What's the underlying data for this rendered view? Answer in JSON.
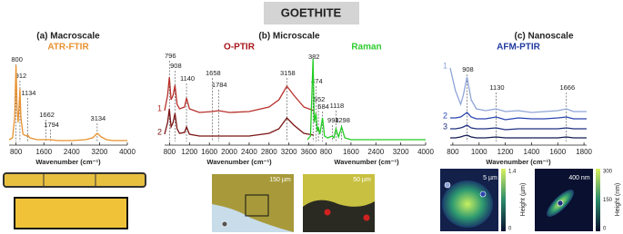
{
  "title": "GOETHITE",
  "sections": [
    "(a) Macroscale",
    "(b) Microscale",
    "(c) Nanoscale"
  ],
  "chart_data": [
    {
      "type": "line",
      "title": "ATR-FTIR",
      "title_color": "#e8912e",
      "xlabel": "Wavenumber (cm⁻¹)",
      "xlim": [
        600,
        4000
      ],
      "xticks": [
        800,
        1600,
        2400,
        3200,
        4000
      ],
      "ylim": [
        0,
        1
      ],
      "peaks": [
        800,
        912,
        1134,
        1662,
        1794,
        3134
      ],
      "x": [
        600,
        700,
        760,
        800,
        830,
        860,
        890,
        912,
        940,
        1000,
        1100,
        1134,
        1200,
        1400,
        1662,
        1794,
        2000,
        2400,
        2800,
        3000,
        3134,
        3250,
        3400,
        3600,
        4000
      ],
      "series": [
        {
          "color": "#e8912e",
          "values": [
            0.06,
            0.08,
            0.3,
            0.88,
            0.4,
            0.25,
            0.45,
            0.62,
            0.3,
            0.12,
            0.1,
            0.11,
            0.08,
            0.06,
            0.06,
            0.06,
            0.05,
            0.05,
            0.06,
            0.08,
            0.13,
            0.09,
            0.06,
            0.05,
            0.05
          ]
        }
      ]
    },
    {
      "type": "line",
      "title": "O-PTIR",
      "title_color": "#a8161a",
      "xlabel": "Wavenumber (cm⁻¹)",
      "xlim": [
        700,
        3700
      ],
      "xticks": [
        800,
        1200,
        1600,
        2000,
        2400,
        2800,
        3200,
        3600
      ],
      "ylim": [
        0,
        1
      ],
      "peaks": [
        796,
        908,
        1140,
        1658,
        1784,
        3158
      ],
      "x": [
        700,
        760,
        796,
        830,
        870,
        908,
        950,
        1000,
        1100,
        1140,
        1200,
        1400,
        1658,
        1784,
        2000,
        2400,
        2800,
        3000,
        3158,
        3300,
        3500,
        3700
      ],
      "series": [
        {
          "name": "1",
          "color": "#b8302a",
          "values": [
            0.38,
            0.55,
            0.75,
            0.5,
            0.55,
            0.66,
            0.45,
            0.4,
            0.42,
            0.52,
            0.4,
            0.36,
            0.37,
            0.38,
            0.36,
            0.37,
            0.42,
            0.5,
            0.65,
            0.55,
            0.42,
            0.38
          ]
        },
        {
          "name": "2",
          "color": "#7a1414",
          "values": [
            0.12,
            0.25,
            0.4,
            0.2,
            0.25,
            0.35,
            0.18,
            0.13,
            0.14,
            0.2,
            0.12,
            0.1,
            0.1,
            0.1,
            0.1,
            0.1,
            0.13,
            0.18,
            0.3,
            0.22,
            0.13,
            0.11
          ]
        }
      ]
    },
    {
      "type": "line",
      "title": "Raman",
      "title_color": "#2ecc2e",
      "xlabel": "Wavenumber (cm⁻¹)",
      "xlim": [
        200,
        4000
      ],
      "xticks": [
        800,
        1600,
        2400,
        3200,
        4000
      ],
      "ylim": [
        0,
        1
      ],
      "peaks": [
        382,
        474,
        552,
        684,
        998,
        1118,
        1298
      ],
      "x": [
        200,
        300,
        382,
        420,
        474,
        520,
        552,
        600,
        684,
        750,
        850,
        998,
        1050,
        1118,
        1200,
        1298,
        1400,
        1600,
        2000,
        2400,
        3000,
        3500,
        4000
      ],
      "series": [
        {
          "color": "#22cc22",
          "values": [
            0.06,
            0.1,
            0.95,
            0.25,
            0.35,
            0.15,
            0.2,
            0.12,
            0.3,
            0.1,
            0.08,
            0.1,
            0.08,
            0.18,
            0.09,
            0.2,
            0.08,
            0.06,
            0.06,
            0.06,
            0.06,
            0.06,
            0.06
          ]
        }
      ]
    },
    {
      "type": "line",
      "title": "AFM-PTIR",
      "title_color": "#1f3a9e",
      "xlabel": "Wavenumber (cm⁻¹)",
      "xlim": [
        780,
        1820
      ],
      "xticks": [
        800,
        1000,
        1200,
        1400,
        1600,
        1800
      ],
      "ylim": [
        0,
        1
      ],
      "peaks": [
        908,
        1130,
        1666
      ],
      "x": [
        780,
        820,
        860,
        880,
        908,
        940,
        980,
        1050,
        1130,
        1200,
        1300,
        1400,
        1500,
        1600,
        1666,
        1720,
        1820
      ],
      "series": [
        {
          "name": "1",
          "color": "#8fa4d8",
          "values": [
            0.85,
            0.6,
            0.45,
            0.55,
            0.75,
            0.5,
            0.4,
            0.38,
            0.4,
            0.37,
            0.38,
            0.36,
            0.37,
            0.38,
            0.4,
            0.37,
            0.37
          ]
        },
        {
          "name": "2",
          "color": "#2a44b0",
          "values": [
            0.3,
            0.3,
            0.31,
            0.33,
            0.36,
            0.31,
            0.29,
            0.29,
            0.31,
            0.28,
            0.3,
            0.29,
            0.29,
            0.3,
            0.31,
            0.29,
            0.29
          ]
        },
        {
          "name": "3",
          "color": "#1f2f80",
          "values": [
            0.18,
            0.18,
            0.19,
            0.2,
            0.22,
            0.19,
            0.18,
            0.18,
            0.19,
            0.17,
            0.18,
            0.18,
            0.18,
            0.18,
            0.19,
            0.18,
            0.18
          ]
        },
        {
          "color": "#141c50",
          "values": [
            0.08,
            0.08,
            0.09,
            0.1,
            0.11,
            0.09,
            0.08,
            0.08,
            0.09,
            0.08,
            0.08,
            0.08,
            0.08,
            0.08,
            0.09,
            0.08,
            0.08
          ]
        }
      ]
    }
  ],
  "micro_scale_bars": [
    "150 µm",
    "50 µm"
  ],
  "afm_scale_bars": [
    "5 µm",
    "400 nm"
  ],
  "colorbars": [
    {
      "label": "Height (µm)",
      "ticks": [
        0,
        1.4
      ]
    },
    {
      "label": "Height (nm)",
      "ticks": [
        0,
        150,
        300
      ]
    }
  ]
}
